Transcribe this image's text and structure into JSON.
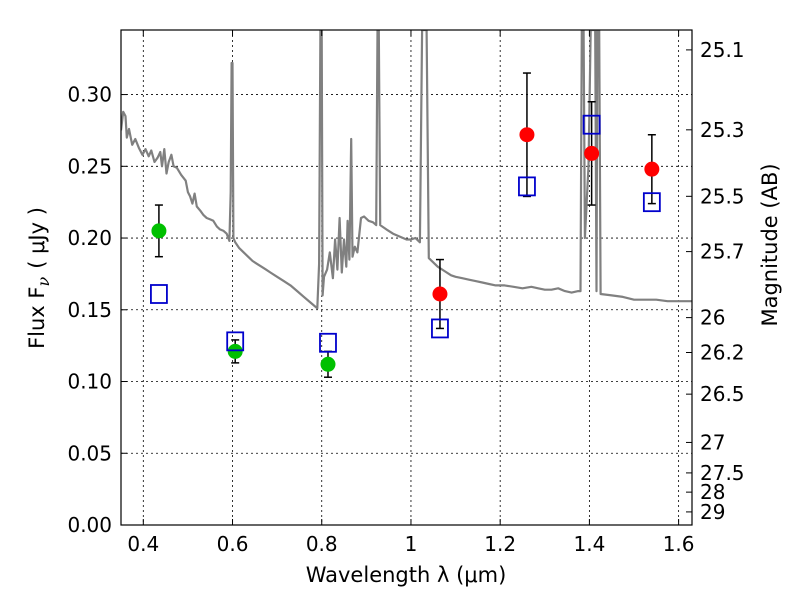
{
  "chart_data": {
    "type": "scatter",
    "title": "",
    "xlabel": "Wavelength  λ (μm)",
    "ylabel": "Flux  F",
    "ylabel_sub": "ν",
    "ylabel_unit": "( μJy )",
    "y2label": "Magnitude (AB)",
    "xlim": [
      0.35,
      1.63
    ],
    "ylim": [
      0.0,
      0.345
    ],
    "grid": true,
    "x_ticks": [
      0.4,
      0.6,
      0.8,
      1.0,
      1.2,
      1.4,
      1.6
    ],
    "x_tick_labels": [
      "0.4",
      "0.6",
      "0.8",
      "1",
      "1.2",
      "1.4",
      "1.6"
    ],
    "y_ticks": [
      0.0,
      0.05,
      0.1,
      0.15,
      0.2,
      0.25,
      0.3
    ],
    "y_tick_labels": [
      "0.00",
      "0.05",
      "0.10",
      "0.15",
      "0.20",
      "0.25",
      "0.30"
    ],
    "y2_ticks": [
      {
        "mag": 25.1,
        "label": "25.1"
      },
      {
        "mag": 25.3,
        "label": "25.3"
      },
      {
        "mag": 25.5,
        "label": "25.5"
      },
      {
        "mag": 25.7,
        "label": "25.7"
      },
      {
        "mag": 26.0,
        "label": "26"
      },
      {
        "mag": 26.2,
        "label": "26.2"
      },
      {
        "mag": 26.5,
        "label": "26.5"
      },
      {
        "mag": 27.0,
        "label": "27"
      },
      {
        "mag": 27.5,
        "label": "27.5"
      },
      {
        "mag": 28.0,
        "label": "28"
      },
      {
        "mag": 29.0,
        "label": "29"
      }
    ],
    "series": [
      {
        "marker": "circle",
        "color": "#00c000",
        "points": [
          {
            "x": 0.435,
            "y": 0.205,
            "err": 0.018
          },
          {
            "x": 0.606,
            "y": 0.121,
            "err": 0.008
          },
          {
            "x": 0.814,
            "y": 0.112,
            "err": 0.009
          }
        ]
      },
      {
        "marker": "circle",
        "color": "#ff0000",
        "points": [
          {
            "x": 1.065,
            "y": 0.161,
            "err": 0.024
          },
          {
            "x": 1.26,
            "y": 0.272,
            "err": 0.043
          },
          {
            "x": 1.405,
            "y": 0.259,
            "err": 0.036
          },
          {
            "x": 1.54,
            "y": 0.248,
            "err": 0.024
          }
        ]
      },
      {
        "marker": "open-square",
        "color": "#0000cc",
        "points": [
          {
            "x": 0.435,
            "y": 0.161
          },
          {
            "x": 0.606,
            "y": 0.128
          },
          {
            "x": 0.814,
            "y": 0.127
          },
          {
            "x": 1.065,
            "y": 0.137
          },
          {
            "x": 1.26,
            "y": 0.236
          },
          {
            "x": 1.405,
            "y": 0.279
          },
          {
            "x": 1.54,
            "y": 0.225
          }
        ]
      },
      {
        "marker": "line",
        "color": "#808080",
        "points": [
          [
            0.35,
            0.275
          ],
          [
            0.355,
            0.288
          ],
          [
            0.36,
            0.285
          ],
          [
            0.363,
            0.27
          ],
          [
            0.368,
            0.276
          ],
          [
            0.375,
            0.265
          ],
          [
            0.382,
            0.269
          ],
          [
            0.39,
            0.263
          ],
          [
            0.398,
            0.258
          ],
          [
            0.405,
            0.262
          ],
          [
            0.412,
            0.257
          ],
          [
            0.418,
            0.261
          ],
          [
            0.425,
            0.253
          ],
          [
            0.432,
            0.256
          ],
          [
            0.438,
            0.26
          ],
          [
            0.442,
            0.25
          ],
          [
            0.447,
            0.262
          ],
          [
            0.452,
            0.245
          ],
          [
            0.457,
            0.253
          ],
          [
            0.463,
            0.258
          ],
          [
            0.468,
            0.25
          ],
          [
            0.475,
            0.249
          ],
          [
            0.485,
            0.244
          ],
          [
            0.495,
            0.24
          ],
          [
            0.5,
            0.232
          ],
          [
            0.505,
            0.229
          ],
          [
            0.51,
            0.224
          ],
          [
            0.515,
            0.231
          ],
          [
            0.52,
            0.222
          ],
          [
            0.528,
            0.219
          ],
          [
            0.535,
            0.216
          ],
          [
            0.542,
            0.214
          ],
          [
            0.55,
            0.213
          ],
          [
            0.557,
            0.212
          ],
          [
            0.565,
            0.208
          ],
          [
            0.572,
            0.206
          ],
          [
            0.58,
            0.205
          ],
          [
            0.587,
            0.203
          ],
          [
            0.593,
            0.198
          ],
          [
            0.596,
            0.232
          ],
          [
            0.598,
            0.322
          ],
          [
            0.6,
            0.322
          ],
          [
            0.602,
            0.2
          ],
          [
            0.606,
            0.197
          ],
          [
            0.615,
            0.193
          ],
          [
            0.625,
            0.19
          ],
          [
            0.635,
            0.187
          ],
          [
            0.645,
            0.184
          ],
          [
            0.655,
            0.182
          ],
          [
            0.665,
            0.18
          ],
          [
            0.675,
            0.178
          ],
          [
            0.685,
            0.176
          ],
          [
            0.7,
            0.173
          ],
          [
            0.715,
            0.17
          ],
          [
            0.73,
            0.167
          ],
          [
            0.745,
            0.163
          ],
          [
            0.76,
            0.159
          ],
          [
            0.775,
            0.155
          ],
          [
            0.79,
            0.151
          ],
          [
            0.794,
            0.182
          ],
          [
            0.797,
            0.345
          ],
          [
            0.8,
            0.345
          ],
          [
            0.802,
            0.16
          ],
          [
            0.805,
            0.173
          ],
          [
            0.812,
            0.178
          ],
          [
            0.818,
            0.19
          ],
          [
            0.825,
            0.172
          ],
          [
            0.83,
            0.199
          ],
          [
            0.835,
            0.178
          ],
          [
            0.84,
            0.214
          ],
          [
            0.845,
            0.176
          ],
          [
            0.85,
            0.199
          ],
          [
            0.855,
            0.18
          ],
          [
            0.858,
            0.212
          ],
          [
            0.862,
            0.185
          ],
          [
            0.866,
            0.269
          ],
          [
            0.869,
            0.187
          ],
          [
            0.874,
            0.194
          ],
          [
            0.88,
            0.19
          ],
          [
            0.888,
            0.214
          ],
          [
            0.895,
            0.215
          ],
          [
            0.905,
            0.212
          ],
          [
            0.915,
            0.211
          ],
          [
            0.922,
            0.209
          ],
          [
            0.925,
            0.345
          ],
          [
            0.928,
            0.345
          ],
          [
            0.931,
            0.209
          ],
          [
            0.945,
            0.206
          ],
          [
            0.96,
            0.203
          ],
          [
            0.975,
            0.201
          ],
          [
            0.99,
            0.199
          ],
          [
            1.0,
            0.199
          ],
          [
            1.01,
            0.2
          ],
          [
            1.02,
            0.197
          ],
          [
            1.025,
            0.345
          ],
          [
            1.035,
            0.345
          ],
          [
            1.04,
            0.186
          ],
          [
            1.05,
            0.183
          ],
          [
            1.06,
            0.18
          ],
          [
            1.075,
            0.177
          ],
          [
            1.09,
            0.174
          ],
          [
            1.1,
            0.173
          ],
          [
            1.115,
            0.172
          ],
          [
            1.13,
            0.171
          ],
          [
            1.145,
            0.17
          ],
          [
            1.16,
            0.169
          ],
          [
            1.175,
            0.168
          ],
          [
            1.19,
            0.167
          ],
          [
            1.21,
            0.167
          ],
          [
            1.23,
            0.166
          ],
          [
            1.25,
            0.165
          ],
          [
            1.27,
            0.166
          ],
          [
            1.285,
            0.165
          ],
          [
            1.3,
            0.164
          ],
          [
            1.315,
            0.164
          ],
          [
            1.33,
            0.165
          ],
          [
            1.345,
            0.163
          ],
          [
            1.36,
            0.162
          ],
          [
            1.375,
            0.163
          ],
          [
            1.38,
            0.163
          ],
          [
            1.383,
            0.345
          ],
          [
            1.387,
            0.345
          ],
          [
            1.39,
            0.2
          ],
          [
            1.398,
            0.25
          ],
          [
            1.403,
            0.345
          ],
          [
            1.413,
            0.345
          ],
          [
            1.416,
            0.163
          ],
          [
            1.418,
            0.345
          ],
          [
            1.422,
            0.345
          ],
          [
            1.425,
            0.161
          ],
          [
            1.45,
            0.16
          ],
          [
            1.475,
            0.159
          ],
          [
            1.5,
            0.157
          ],
          [
            1.525,
            0.157
          ],
          [
            1.55,
            0.157
          ],
          [
            1.575,
            0.156
          ],
          [
            1.6,
            0.156
          ],
          [
            1.63,
            0.156
          ]
        ]
      }
    ]
  }
}
